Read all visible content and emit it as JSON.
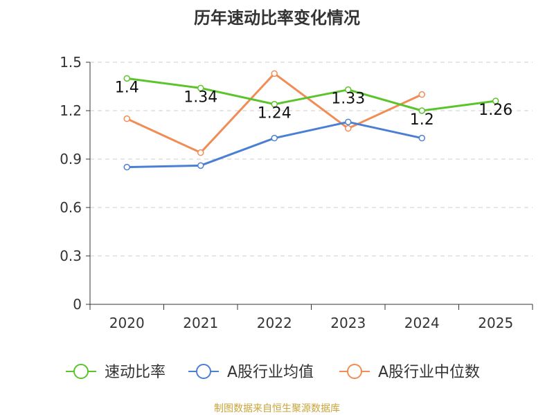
{
  "title": "历年速动比率变化情况",
  "source": "制图数据来自恒生聚源数据库",
  "chart_data": {
    "type": "line",
    "title": "历年速动比率变化情况",
    "categories": [
      "2020",
      "2021",
      "2022",
      "2023",
      "2024",
      "2025"
    ],
    "ylim": [
      0,
      1.5
    ],
    "yticks": [
      0,
      0.3,
      0.6,
      0.9,
      1.2,
      1.5
    ],
    "ytick_labels": [
      "0",
      "0.3",
      "0.6",
      "0.9",
      "1.2",
      "1.5"
    ],
    "grid": true,
    "legend_position": "bottom",
    "series": [
      {
        "name": "速动比率",
        "color": "#5bc42b",
        "values": [
          1.4,
          1.34,
          1.24,
          1.33,
          1.2,
          1.26
        ],
        "labels": [
          "1.4",
          "1.34",
          "1.24",
          "1.33",
          "1.2",
          "1.26"
        ]
      },
      {
        "name": "A股行业均值",
        "color": "#4a7fd4",
        "values": [
          0.85,
          0.86,
          1.03,
          1.13,
          1.03,
          null
        ]
      },
      {
        "name": "A股行业中位数",
        "color": "#f28c55",
        "values": [
          1.15,
          0.94,
          1.43,
          1.09,
          1.3,
          null
        ]
      }
    ]
  }
}
